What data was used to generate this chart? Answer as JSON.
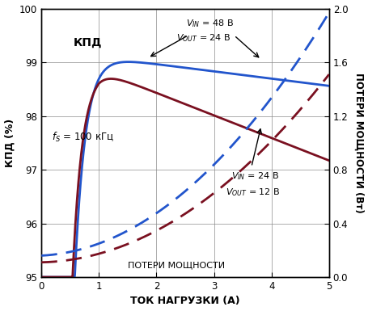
{
  "xlabel": "ТОК НАГРУЗКИ (А)",
  "ylabel_left": "КПД (%)",
  "ylabel_right": "ПОТЕРИ МОЩНОСТИ (Вт)",
  "xlim": [
    0,
    5
  ],
  "ylim_left": [
    95,
    100
  ],
  "ylim_right": [
    0,
    2.0
  ],
  "xticks": [
    0,
    1,
    2,
    3,
    4,
    5
  ],
  "yticks_left": [
    95,
    96,
    97,
    98,
    99,
    100
  ],
  "yticks_right": [
    0,
    0.4,
    0.8,
    1.2,
    1.6,
    2.0
  ],
  "color_blue": "#2255cc",
  "color_dark_red": "#7a1020",
  "kpd_label": "КПД",
  "losses_label": "ПОТЕРИ МОЩНОСТИ",
  "fs_label": "$f_S$ = 100 кГц",
  "ann1_l1": "$V_{IN}$ = 48 В",
  "ann1_l2": "$V_{OUT}$ = 24 В",
  "ann2_l1": "$V_{IN}$ = 24 В",
  "ann2_l2": "$V_{OUT}$ = 12 В",
  "background_color": "#ffffff"
}
